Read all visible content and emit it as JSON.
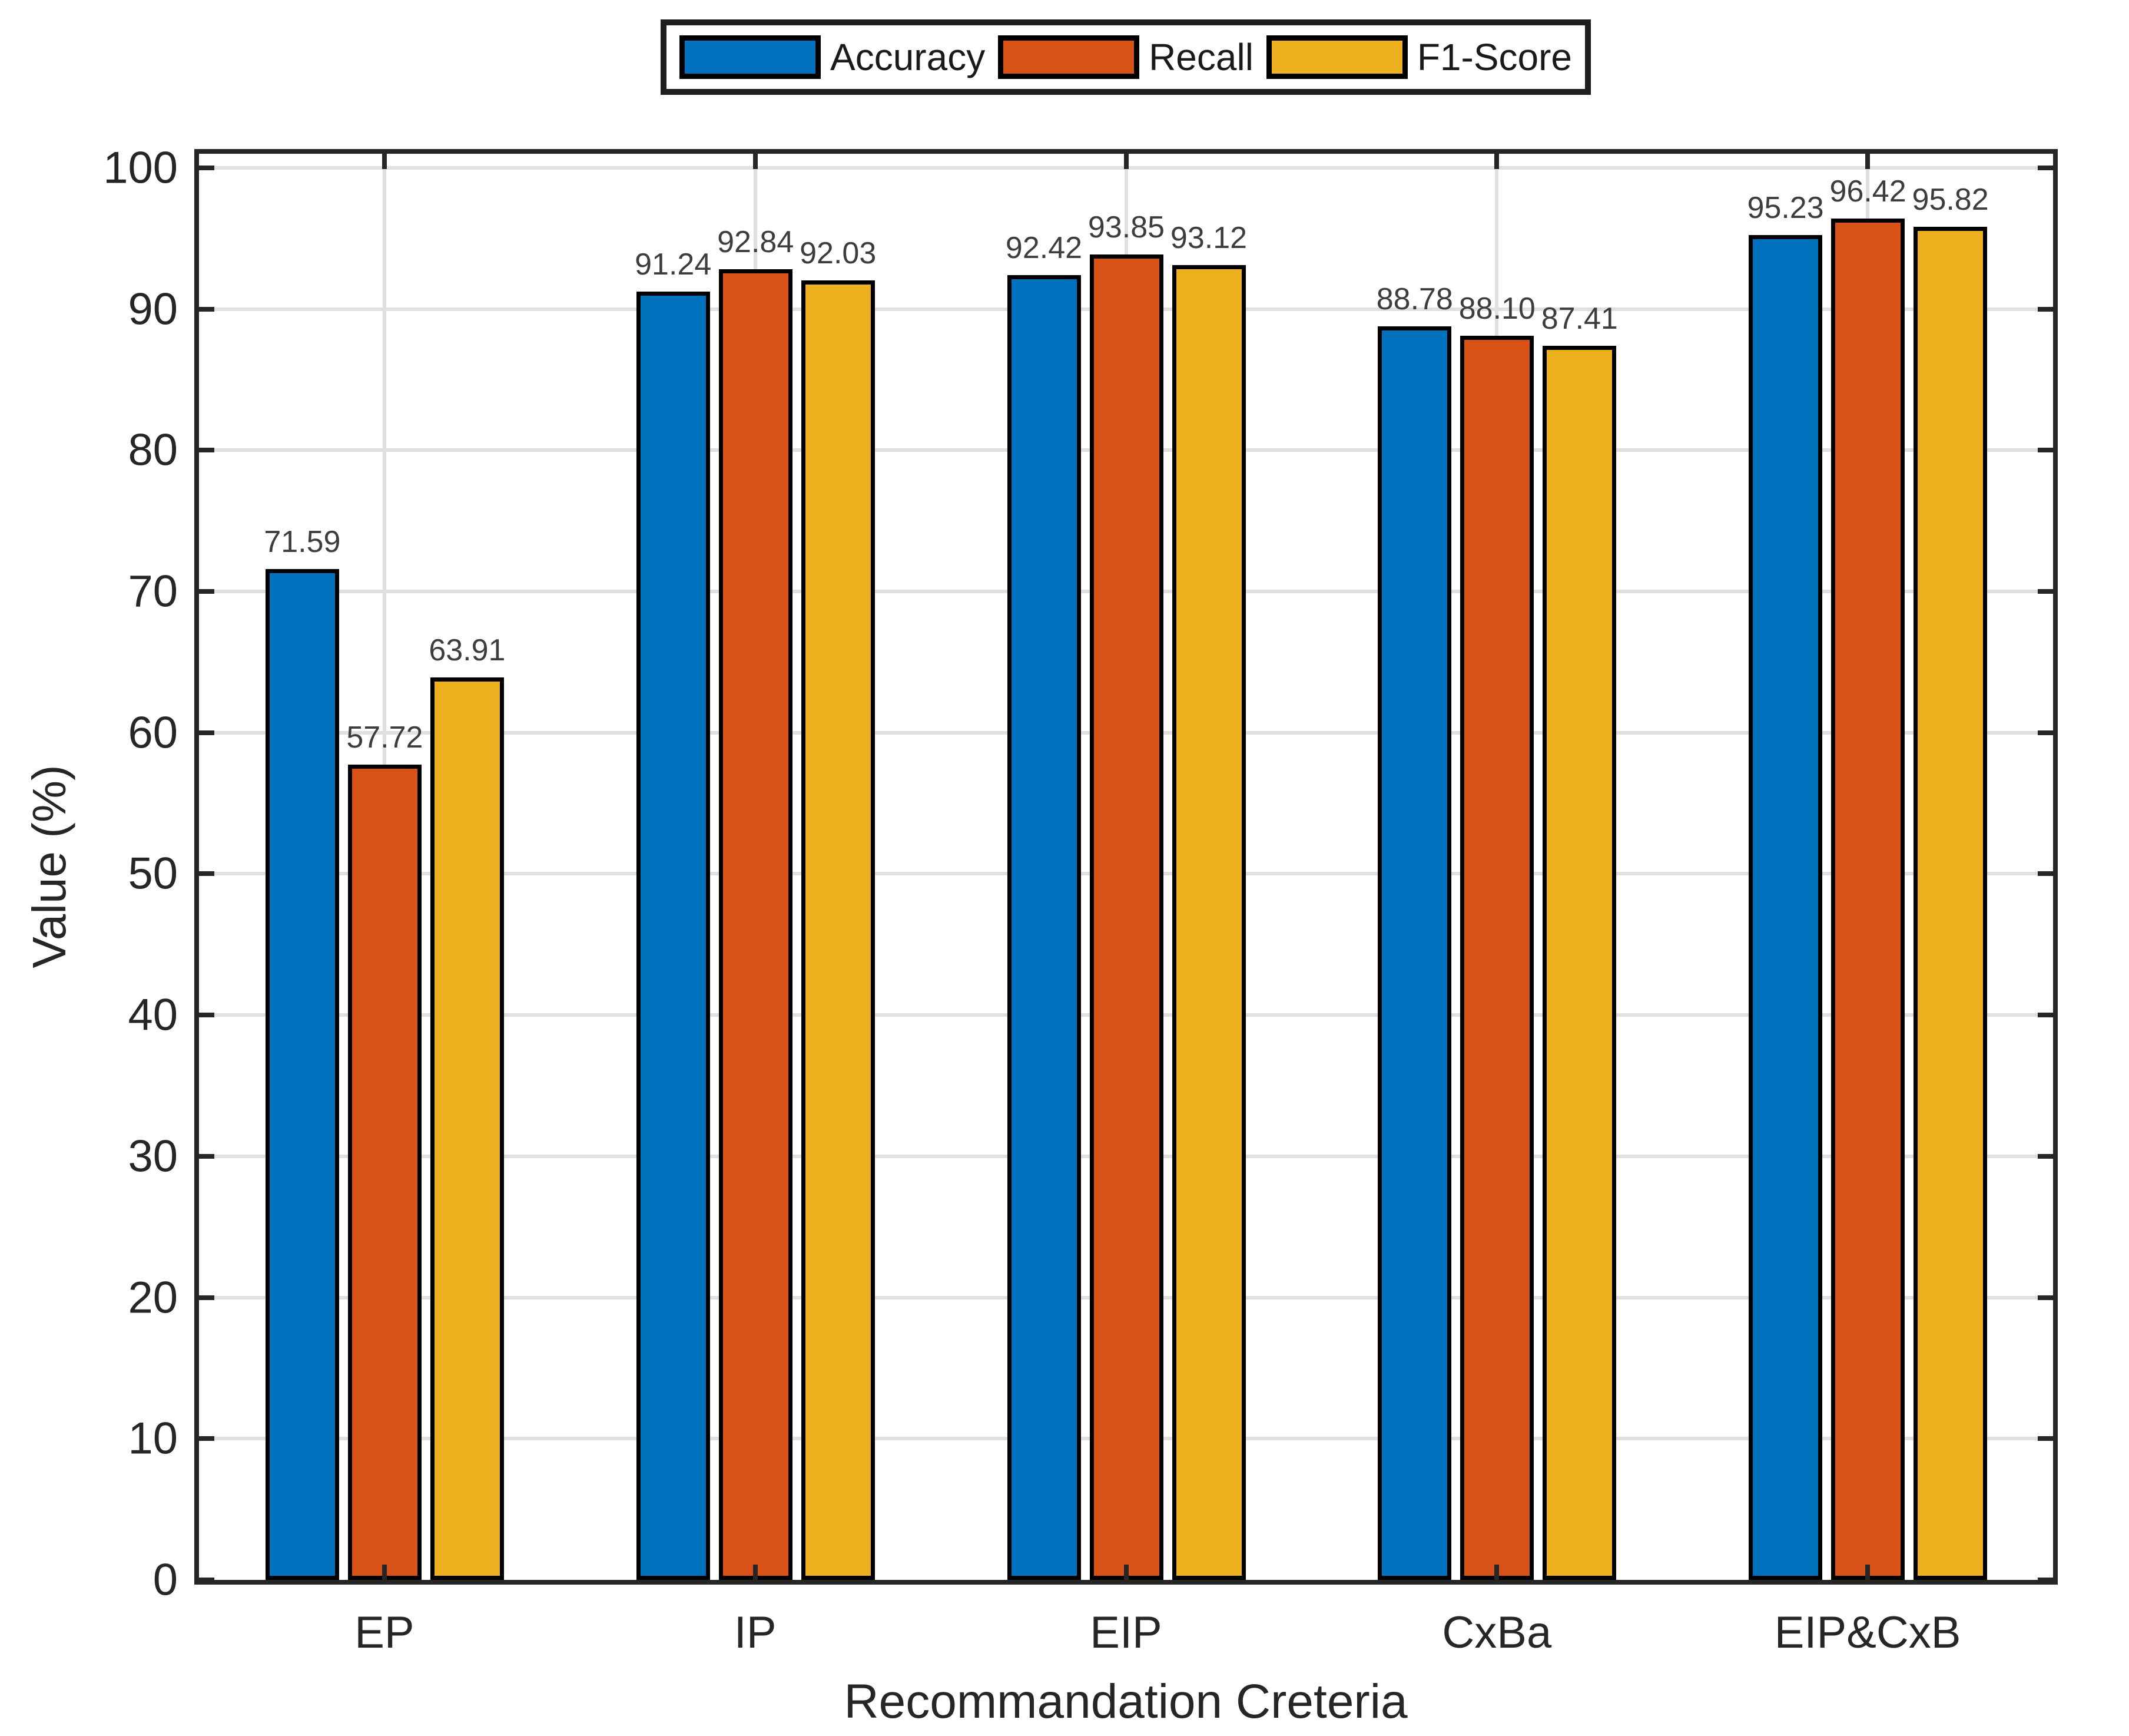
{
  "chart_data": {
    "type": "bar",
    "title": "",
    "xlabel": "Recommandation Creteria",
    "ylabel": "Value (%)",
    "ylim": [
      0,
      100
    ],
    "yticks": [
      0,
      10,
      20,
      30,
      40,
      50,
      60,
      70,
      80,
      90,
      100
    ],
    "grid": true,
    "legend_position": "top-center",
    "categories": [
      "EP",
      "IP",
      "EIP",
      "CxBa",
      "EIP&CxB"
    ],
    "series": [
      {
        "name": "Accuracy",
        "color": "#0072BD",
        "values": [
          71.59,
          91.24,
          92.42,
          88.78,
          95.23
        ]
      },
      {
        "name": "Recall",
        "color": "#D95319",
        "values": [
          57.72,
          92.84,
          93.85,
          88.1,
          96.42
        ]
      },
      {
        "name": "F1-Score",
        "color": "#EDB120",
        "values": [
          63.91,
          92.03,
          93.12,
          87.41,
          95.82
        ]
      }
    ],
    "bar_edge_color": "#000000",
    "value_label_decimals": 2
  }
}
